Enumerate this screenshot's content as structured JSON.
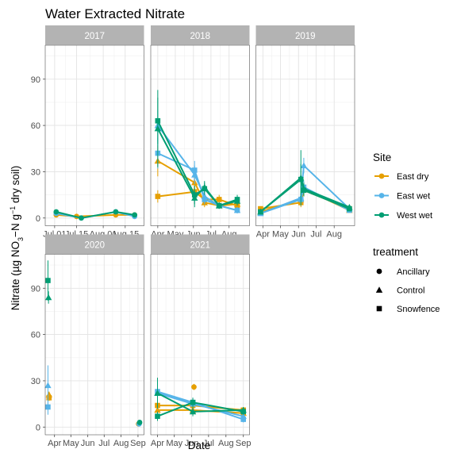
{
  "chart_data": {
    "type": "line",
    "title": "Water Extracted Nitrate",
    "xlabel": "Date",
    "ylabel": "Nitrate (µg NO3−N g−1 dry soil)",
    "ylim": [
      -5,
      112
    ],
    "yticks": [
      0,
      30,
      60,
      90
    ],
    "grid": true,
    "legend_placement": "right",
    "colors": {
      "East dry": "#E69F00",
      "East wet": "#56B4E9",
      "West wet": "#009E73"
    },
    "legend": {
      "site_title": "Site",
      "sites": [
        "East dry",
        "East wet",
        "West wet"
      ],
      "treatment_title": "treatment",
      "treatments": [
        {
          "name": "Ancillary",
          "shape": "circle"
        },
        {
          "name": "Control",
          "shape": "triangle"
        },
        {
          "name": "Snowfence",
          "shape": "square"
        }
      ]
    },
    "panels": [
      {
        "label": "2017",
        "xrange": [
          "2017-06-25",
          "2017-08-27"
        ],
        "ticks": [
          {
            "date": "2017-07-01",
            "label": "Jul 01"
          },
          {
            "date": "2017-07-15",
            "label": "Jul 15"
          },
          {
            "date": "2017-08-01",
            "label": "Aug 01"
          },
          {
            "date": "2017-08-15",
            "label": "Aug 15"
          }
        ],
        "series": [
          {
            "site": "East dry",
            "treatment": "Ancillary",
            "points": [
              {
                "x": "2017-07-02",
                "y": 2,
                "err": 1
              },
              {
                "x": "2017-07-15",
                "y": 1,
                "err": 1
              },
              {
                "x": "2017-08-09",
                "y": 2,
                "err": 1
              },
              {
                "x": "2017-08-21",
                "y": 2,
                "err": 1
              }
            ]
          },
          {
            "site": "East wet",
            "treatment": "Ancillary",
            "points": [
              {
                "x": "2017-07-02",
                "y": 3,
                "err": 1
              },
              {
                "x": "2017-07-18",
                "y": 0,
                "err": 1
              },
              {
                "x": "2017-08-09",
                "y": 4,
                "err": 1
              },
              {
                "x": "2017-08-21",
                "y": 1,
                "err": 1
              }
            ]
          },
          {
            "site": "West wet",
            "treatment": "Ancillary",
            "points": [
              {
                "x": "2017-07-02",
                "y": 4,
                "err": 1
              },
              {
                "x": "2017-07-18",
                "y": 0,
                "err": 1
              },
              {
                "x": "2017-08-09",
                "y": 4,
                "err": 1
              },
              {
                "x": "2017-08-21",
                "y": 2,
                "err": 1
              }
            ]
          }
        ]
      },
      {
        "label": "2018",
        "xrange": [
          "2018-03-20",
          "2018-09-05"
        ],
        "ticks": [
          {
            "date": "2018-04-01",
            "label": "Apr"
          },
          {
            "date": "2018-05-01",
            "label": "May"
          },
          {
            "date": "2018-06-01",
            "label": "Jun"
          },
          {
            "date": "2018-07-01",
            "label": "Jul"
          },
          {
            "date": "2018-08-01",
            "label": "Aug"
          }
        ],
        "series": [
          {
            "site": "East dry",
            "treatment": "Control",
            "points": [
              {
                "x": "2018-04-01",
                "y": 37,
                "err": 10
              },
              {
                "x": "2018-06-03",
                "y": 23,
                "err": 6
              },
              {
                "x": "2018-06-20",
                "y": 10,
                "err": 3
              },
              {
                "x": "2018-07-15",
                "y": 8,
                "err": 2
              },
              {
                "x": "2018-08-15",
                "y": 9,
                "err": 2
              }
            ]
          },
          {
            "site": "East dry",
            "treatment": "Snowfence",
            "points": [
              {
                "x": "2018-04-01",
                "y": 14,
                "err": 4
              },
              {
                "x": "2018-06-03",
                "y": 17,
                "err": 5
              },
              {
                "x": "2018-06-20",
                "y": 12,
                "err": 3
              },
              {
                "x": "2018-07-15",
                "y": 12,
                "err": 3
              },
              {
                "x": "2018-08-15",
                "y": 8,
                "err": 2
              }
            ]
          },
          {
            "site": "East wet",
            "treatment": "Control",
            "points": [
              {
                "x": "2018-04-01",
                "y": 60,
                "err": 10
              },
              {
                "x": "2018-06-03",
                "y": 28,
                "err": 6
              },
              {
                "x": "2018-06-20",
                "y": 14,
                "err": 3
              },
              {
                "x": "2018-07-15",
                "y": 8,
                "err": 2
              },
              {
                "x": "2018-08-15",
                "y": 5,
                "err": 2
              }
            ]
          },
          {
            "site": "East wet",
            "treatment": "Snowfence",
            "points": [
              {
                "x": "2018-04-01",
                "y": 42,
                "err": 10
              },
              {
                "x": "2018-06-03",
                "y": 31,
                "err": 6
              },
              {
                "x": "2018-06-20",
                "y": 12,
                "err": 3
              },
              {
                "x": "2018-07-15",
                "y": 8,
                "err": 2
              },
              {
                "x": "2018-08-15",
                "y": 5,
                "err": 2
              }
            ]
          },
          {
            "site": "West wet",
            "treatment": "Control",
            "points": [
              {
                "x": "2018-04-01",
                "y": 58,
                "err": 25
              },
              {
                "x": "2018-06-03",
                "y": 13,
                "err": 6
              },
              {
                "x": "2018-06-20",
                "y": 20,
                "err": 4
              },
              {
                "x": "2018-07-15",
                "y": 8,
                "err": 2
              },
              {
                "x": "2018-08-15",
                "y": 11,
                "err": 3
              }
            ]
          },
          {
            "site": "West wet",
            "treatment": "Snowfence",
            "points": [
              {
                "x": "2018-04-01",
                "y": 63,
                "err": 15
              },
              {
                "x": "2018-06-03",
                "y": 15,
                "err": 6
              },
              {
                "x": "2018-06-20",
                "y": 19,
                "err": 4
              },
              {
                "x": "2018-07-15",
                "y": 8,
                "err": 2
              },
              {
                "x": "2018-08-15",
                "y": 12,
                "err": 3
              }
            ]
          }
        ]
      },
      {
        "label": "2019",
        "xrange": [
          "2019-03-20",
          "2019-09-05"
        ],
        "ticks": [
          {
            "date": "2019-04-01",
            "label": "Apr"
          },
          {
            "date": "2019-05-01",
            "label": "May"
          },
          {
            "date": "2019-06-01",
            "label": "Jun"
          },
          {
            "date": "2019-07-01",
            "label": "Jul"
          },
          {
            "date": "2019-08-01",
            "label": "Aug"
          }
        ],
        "series": [
          {
            "site": "East dry",
            "treatment": "Control",
            "points": [
              {
                "x": "2019-03-28",
                "y": 4,
                "err": 1
              },
              {
                "x": "2019-06-05",
                "y": 12,
                "err": 3
              },
              {
                "x": "2019-06-10",
                "y": 19,
                "err": 4
              },
              {
                "x": "2019-08-27",
                "y": 5,
                "err": 1
              }
            ]
          },
          {
            "site": "East dry",
            "treatment": "Snowfence",
            "points": [
              {
                "x": "2019-03-28",
                "y": 6,
                "err": 1
              },
              {
                "x": "2019-06-05",
                "y": 10,
                "err": 3
              },
              {
                "x": "2019-06-10",
                "y": 18,
                "err": 4
              },
              {
                "x": "2019-08-27",
                "y": 6,
                "err": 1
              }
            ]
          },
          {
            "site": "East wet",
            "treatment": "Control",
            "points": [
              {
                "x": "2019-03-28",
                "y": 3,
                "err": 1
              },
              {
                "x": "2019-06-05",
                "y": 13,
                "err": 3
              },
              {
                "x": "2019-06-10",
                "y": 34,
                "err": 5
              },
              {
                "x": "2019-08-27",
                "y": 6,
                "err": 1
              }
            ]
          },
          {
            "site": "East wet",
            "treatment": "Snowfence",
            "points": [
              {
                "x": "2019-03-28",
                "y": 3,
                "err": 1
              },
              {
                "x": "2019-06-05",
                "y": 12,
                "err": 3
              },
              {
                "x": "2019-06-10",
                "y": 20,
                "err": 4
              },
              {
                "x": "2019-08-27",
                "y": 5,
                "err": 1
              }
            ]
          },
          {
            "site": "West wet",
            "treatment": "Control",
            "points": [
              {
                "x": "2019-03-28",
                "y": 4,
                "err": 1
              },
              {
                "x": "2019-06-05",
                "y": 26,
                "err": 18
              },
              {
                "x": "2019-06-10",
                "y": 19,
                "err": 4
              },
              {
                "x": "2019-08-27",
                "y": 7,
                "err": 1
              }
            ]
          },
          {
            "site": "West wet",
            "treatment": "Snowfence",
            "points": [
              {
                "x": "2019-03-28",
                "y": 4,
                "err": 1
              },
              {
                "x": "2019-06-05",
                "y": 25,
                "err": 10
              },
              {
                "x": "2019-06-10",
                "y": 18,
                "err": 4
              },
              {
                "x": "2019-08-27",
                "y": 6,
                "err": 1
              }
            ]
          }
        ]
      },
      {
        "label": "2020",
        "xrange": [
          "2020-03-15",
          "2020-09-12"
        ],
        "ticks": [
          {
            "date": "2020-04-01",
            "label": "Apr"
          },
          {
            "date": "2020-05-01",
            "label": "May"
          },
          {
            "date": "2020-06-01",
            "label": "Jun"
          },
          {
            "date": "2020-07-01",
            "label": "Jul"
          },
          {
            "date": "2020-08-01",
            "label": "Aug"
          },
          {
            "date": "2020-09-01",
            "label": "Sep"
          }
        ],
        "series": [
          {
            "site": "East dry",
            "treatment": "Control",
            "points": [
              {
                "x": "2020-03-22",
                "y": 21,
                "err": 2
              }
            ]
          },
          {
            "site": "East dry",
            "treatment": "Snowfence",
            "points": [
              {
                "x": "2020-03-22",
                "y": 19,
                "err": 2
              }
            ]
          },
          {
            "site": "East wet",
            "treatment": "Control",
            "points": [
              {
                "x": "2020-03-20",
                "y": 27,
                "err": 13
              }
            ]
          },
          {
            "site": "East wet",
            "treatment": "Snowfence",
            "points": [
              {
                "x": "2020-03-20",
                "y": 13,
                "err": 5
              }
            ]
          },
          {
            "site": "West wet",
            "treatment": "Control",
            "points": [
              {
                "x": "2020-03-21",
                "y": 84,
                "err": 4
              }
            ]
          },
          {
            "site": "West wet",
            "treatment": "Snowfence",
            "points": [
              {
                "x": "2020-03-20",
                "y": 95,
                "err": 13
              }
            ]
          },
          {
            "site": "East dry",
            "treatment": "Ancillary",
            "points": [
              {
                "x": "2020-09-02",
                "y": 2,
                "err": 1
              }
            ]
          },
          {
            "site": "East wet",
            "treatment": "Ancillary",
            "points": [
              {
                "x": "2020-09-03",
                "y": 2,
                "err": 1
              }
            ]
          },
          {
            "site": "West wet",
            "treatment": "Ancillary",
            "points": [
              {
                "x": "2020-09-04",
                "y": 3,
                "err": 1
              }
            ]
          }
        ]
      },
      {
        "label": "2021",
        "xrange": [
          "2021-03-20",
          "2021-09-12"
        ],
        "ticks": [
          {
            "date": "2021-04-01",
            "label": "Apr"
          },
          {
            "date": "2021-05-01",
            "label": "May"
          },
          {
            "date": "2021-06-01",
            "label": "Jun"
          },
          {
            "date": "2021-07-01",
            "label": "Jul"
          },
          {
            "date": "2021-08-01",
            "label": "Aug"
          },
          {
            "date": "2021-09-01",
            "label": "Sep"
          }
        ],
        "series": [
          {
            "site": "East dry",
            "treatment": "Control",
            "points": [
              {
                "x": "2021-04-01",
                "y": 11,
                "err": 3
              },
              {
                "x": "2021-06-03",
                "y": 11,
                "err": 3
              },
              {
                "x": "2021-09-01",
                "y": 9,
                "err": 2
              }
            ]
          },
          {
            "site": "East dry",
            "treatment": "Snowfence",
            "points": [
              {
                "x": "2021-04-01",
                "y": 14,
                "err": 3
              },
              {
                "x": "2021-06-03",
                "y": 14,
                "err": 3
              },
              {
                "x": "2021-09-01",
                "y": 11,
                "err": 2
              }
            ]
          },
          {
            "site": "East wet",
            "treatment": "Control",
            "points": [
              {
                "x": "2021-04-01",
                "y": 22,
                "err": 6
              },
              {
                "x": "2021-06-03",
                "y": 15,
                "err": 3
              },
              {
                "x": "2021-09-01",
                "y": 7,
                "err": 2
              }
            ]
          },
          {
            "site": "East wet",
            "treatment": "Snowfence",
            "points": [
              {
                "x": "2021-04-01",
                "y": 23,
                "err": 6
              },
              {
                "x": "2021-06-03",
                "y": 16,
                "err": 3
              },
              {
                "x": "2021-09-01",
                "y": 5,
                "err": 2
              }
            ]
          },
          {
            "site": "West wet",
            "treatment": "Control",
            "points": [
              {
                "x": "2021-04-01",
                "y": 22,
                "err": 10
              },
              {
                "x": "2021-06-03",
                "y": 10,
                "err": 3
              },
              {
                "x": "2021-09-01",
                "y": 11,
                "err": 2
              }
            ]
          },
          {
            "site": "West wet",
            "treatment": "Snowfence",
            "points": [
              {
                "x": "2021-04-01",
                "y": 7,
                "err": 3
              },
              {
                "x": "2021-06-03",
                "y": 16,
                "err": 3
              },
              {
                "x": "2021-09-01",
                "y": 10,
                "err": 2
              }
            ]
          },
          {
            "site": "East dry",
            "treatment": "Ancillary",
            "points": [
              {
                "x": "2021-06-05",
                "y": 26,
                "err": 2
              }
            ]
          }
        ]
      }
    ]
  }
}
